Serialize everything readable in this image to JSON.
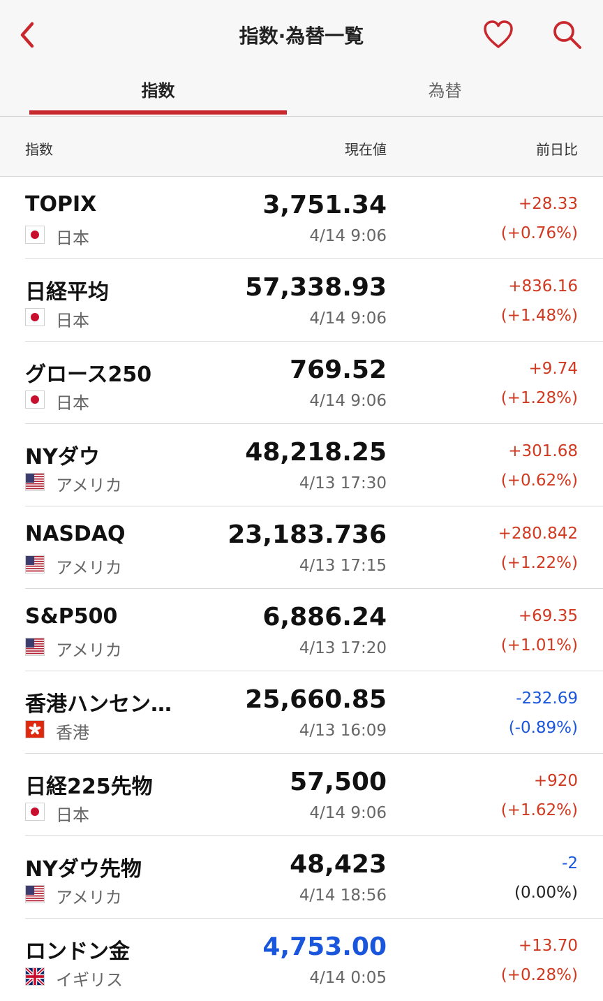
{
  "header": {
    "title": "指数·為替一覧",
    "tabs": [
      {
        "label": "指数",
        "active": true
      },
      {
        "label": "為替",
        "active": false
      }
    ],
    "accent_color": "#c8282d"
  },
  "columns": {
    "name": "指数",
    "price": "現在値",
    "change": "前日比"
  },
  "rows": [
    {
      "name": "TOPIX",
      "flag": "jp",
      "country": "日本",
      "price": "3,751.34",
      "time": "4/14 9:06",
      "change": "+28.33",
      "percent": "(+0.76%)",
      "direction": "up"
    },
    {
      "name": "日経平均",
      "flag": "jp",
      "country": "日本",
      "price": "57,338.93",
      "time": "4/14 9:06",
      "change": "+836.16",
      "percent": "(+1.48%)",
      "direction": "up"
    },
    {
      "name": "グロース250",
      "flag": "jp",
      "country": "日本",
      "price": "769.52",
      "time": "4/14 9:06",
      "change": "+9.74",
      "percent": "(+1.28%)",
      "direction": "up"
    },
    {
      "name": "NYダウ",
      "flag": "us",
      "country": "アメリカ",
      "price": "48,218.25",
      "time": "4/13 17:30",
      "change": "+301.68",
      "percent": "(+0.62%)",
      "direction": "up"
    },
    {
      "name": "NASDAQ",
      "flag": "us",
      "country": "アメリカ",
      "price": "23,183.736",
      "time": "4/13 17:15",
      "change": "+280.842",
      "percent": "(+1.22%)",
      "direction": "up"
    },
    {
      "name": "S&P500",
      "flag": "us",
      "country": "アメリカ",
      "price": "6,886.24",
      "time": "4/13 17:20",
      "change": "+69.35",
      "percent": "(+1.01%)",
      "direction": "up"
    },
    {
      "name": "香港ハンセン…",
      "flag": "hk",
      "country": "香港",
      "price": "25,660.85",
      "time": "4/13 16:09",
      "change": "-232.69",
      "percent": "(-0.89%)",
      "direction": "down"
    },
    {
      "name": "日経225先物",
      "flag": "jp",
      "country": "日本",
      "price": "57,500",
      "time": "4/14 9:06",
      "change": "+920",
      "percent": "(+1.62%)",
      "direction": "up"
    },
    {
      "name": "NYダウ先物",
      "flag": "us",
      "country": "アメリカ",
      "price": "48,423",
      "time": "4/14 18:56",
      "change": "-2",
      "percent": "(0.00%)",
      "direction": "flat"
    },
    {
      "name": "ロンドン金",
      "flag": "uk",
      "country": "イギリス",
      "price": "4,753.00",
      "time": "4/14 0:05",
      "change": "+13.70",
      "percent": "(+0.28%)",
      "direction": "up",
      "price_highlight": true
    }
  ],
  "colors": {
    "up": "#d0391f",
    "down": "#1a56db",
    "highlight_price": "#1a56db"
  },
  "icons": {
    "back": "chevron-left-icon",
    "favorite": "heart-icon",
    "search": "search-icon"
  }
}
